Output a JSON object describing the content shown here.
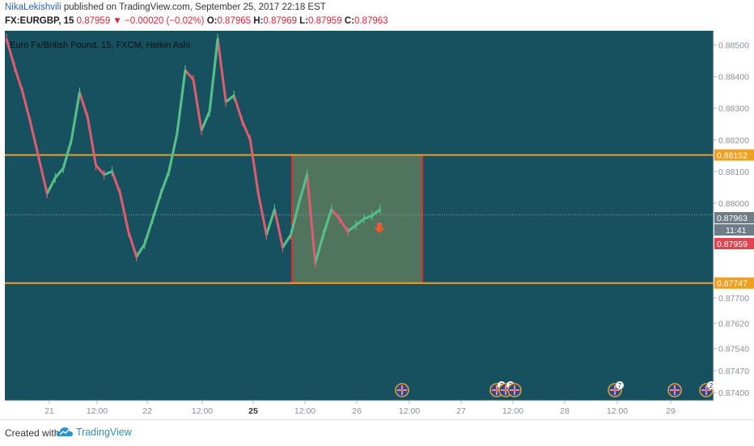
{
  "header": {
    "author": "NikaLekishvili",
    "published": " published on TradingView.com, September 25, 2017 22:18 EST"
  },
  "quote": {
    "symbol": "FX:EURGBP, 15",
    "last": "0.87959",
    "arrow": "▼",
    "change": "−0.00020 (−0.02%)",
    "o_label": "O:",
    "o": "0.87965",
    "h_label": "H:",
    "h": "0.87969",
    "l_label": "L:",
    "l": "0.87959",
    "c_label": "C:",
    "c": "0.87963"
  },
  "chart_data": {
    "type": "line",
    "title": "Euro Fx/British Pound, 15, FXCM, Heikin Ashi",
    "ylim": [
      0.87375,
      0.88545
    ],
    "y_ticks": [
      "0.88500",
      "0.88400",
      "0.88300",
      "0.88200",
      "0.88100",
      "0.88000",
      "0.87700",
      "0.87620",
      "0.87540",
      "0.87470",
      "0.87400"
    ],
    "x_ticks": [
      "21",
      "12:00",
      "22",
      "12:00",
      "25",
      "12:00",
      "26",
      "12:00",
      "27",
      "12:00",
      "28",
      "12:00",
      "29"
    ],
    "series": [
      {
        "values": [
          0.8852,
          0.8843,
          0.8835,
          0.8825,
          0.8814,
          0.8803,
          0.8808,
          0.8811,
          0.882,
          0.8835,
          0.8827,
          0.8812,
          0.8809,
          0.881,
          0.8803,
          0.8791,
          0.8783,
          0.8787,
          0.8795,
          0.8803,
          0.881,
          0.8822,
          0.8842,
          0.8839,
          0.8823,
          0.8829,
          0.8852,
          0.8832,
          0.8834,
          0.8826,
          0.882,
          0.8803,
          0.879,
          0.8798,
          0.8786,
          0.879,
          0.88,
          0.8809,
          0.8781,
          0.879,
          0.8798,
          0.8795,
          0.8791,
          0.8793,
          0.8795,
          0.8796,
          0.8798
        ]
      }
    ],
    "horizontal_levels": [
      {
        "value": 0.88152,
        "label": "0.88152",
        "color": "#f0a020"
      },
      {
        "value": 0.87747,
        "label": "0.87747",
        "color": "#f0a020"
      }
    ],
    "price_labels": [
      {
        "value": 0.87963,
        "label": "0.87963",
        "color": "#6e7d86"
      },
      {
        "value": 0.87918,
        "label": "11:41",
        "color": "#6e7d86"
      },
      {
        "value": 0.87959,
        "label": "0.87959",
        "color": "#e04450"
      }
    ],
    "rect_zone": {
      "y_top": 0.88152,
      "y_bottom": 0.87747,
      "border": "#e52b2b",
      "fill": "#5c7a5e"
    },
    "event_markers": [
      "",
      "2",
      "3",
      "7",
      "",
      "2"
    ],
    "grid": false,
    "colors": {
      "background": "#17505f",
      "line": "#e05d6f",
      "up": "#4fc28a",
      "axis_text": "#8a8f94"
    }
  },
  "footer": {
    "created": "Created with",
    "brand": "TradingView"
  }
}
